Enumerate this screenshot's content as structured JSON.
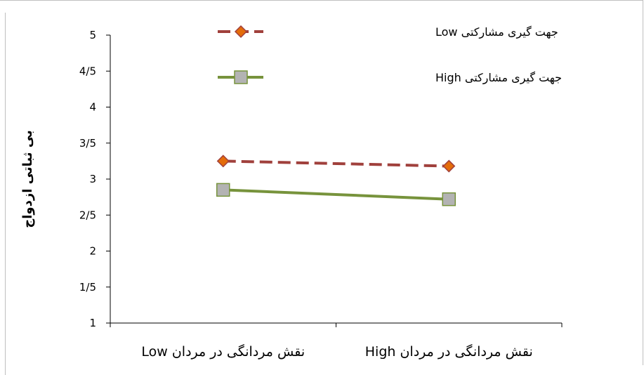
{
  "chart_data": {
    "type": "line",
    "categories": [
      "نقش مردانگی در مردان Low",
      "نقش مردانگی در مردان High"
    ],
    "ylabel": "بی ثباتی ازدواج",
    "xlabel": "",
    "ylim": [
      1,
      5
    ],
    "yticks": [
      "1",
      "1/5",
      "2",
      "2/5",
      "3",
      "3/5",
      "4",
      "4/5",
      "5"
    ],
    "ytick_values": [
      1,
      1.5,
      2,
      2.5,
      3,
      3.5,
      4,
      4.5,
      5
    ],
    "grid": false,
    "legend_position": "top",
    "series": [
      {
        "name": "جهت گیری مشارکتی Low",
        "values": [
          3.25,
          3.18
        ],
        "color": "#a0403c",
        "marker_color": "#e46c0a",
        "line_style": "dashed",
        "marker": "diamond"
      },
      {
        "name": "جهت گیری مشارکتی High",
        "values": [
          2.85,
          2.72
        ],
        "color": "#77933c",
        "marker_color": "#b3b3b3",
        "line_style": "solid",
        "marker": "square"
      }
    ]
  }
}
